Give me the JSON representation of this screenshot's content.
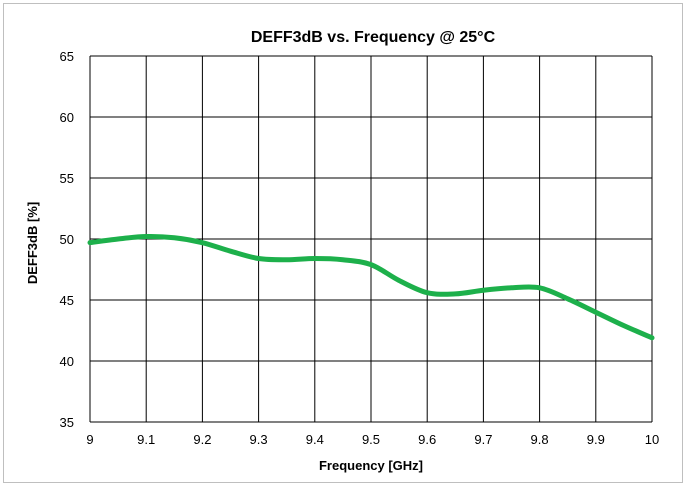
{
  "chart_data": {
    "type": "line",
    "title": "DEFF3dB vs. Frequency @ 25°C",
    "xlabel": "Frequency [GHz]",
    "ylabel": "DEFF3dB [%]",
    "xlim": [
      9,
      10
    ],
    "ylim": [
      35,
      65
    ],
    "xticks": [
      "9",
      "9.1",
      "9.2",
      "9.3",
      "9.4",
      "9.5",
      "9.6",
      "9.7",
      "9.8",
      "9.9",
      "10"
    ],
    "yticks": [
      "35",
      "40",
      "45",
      "50",
      "55",
      "60",
      "65"
    ],
    "grid": true,
    "series": [
      {
        "color": "#1db04b",
        "x": [
          9.0,
          9.05,
          9.1,
          9.15,
          9.2,
          9.25,
          9.3,
          9.35,
          9.4,
          9.45,
          9.5,
          9.55,
          9.6,
          9.65,
          9.7,
          9.75,
          9.8,
          9.85,
          9.9,
          9.95,
          10.0
        ],
        "y": [
          49.7,
          50.0,
          50.2,
          50.1,
          49.7,
          49.0,
          48.4,
          48.3,
          48.4,
          48.3,
          47.9,
          46.6,
          45.6,
          45.5,
          45.8,
          46.0,
          46.0,
          45.1,
          44.0,
          42.9,
          41.9
        ]
      }
    ]
  }
}
